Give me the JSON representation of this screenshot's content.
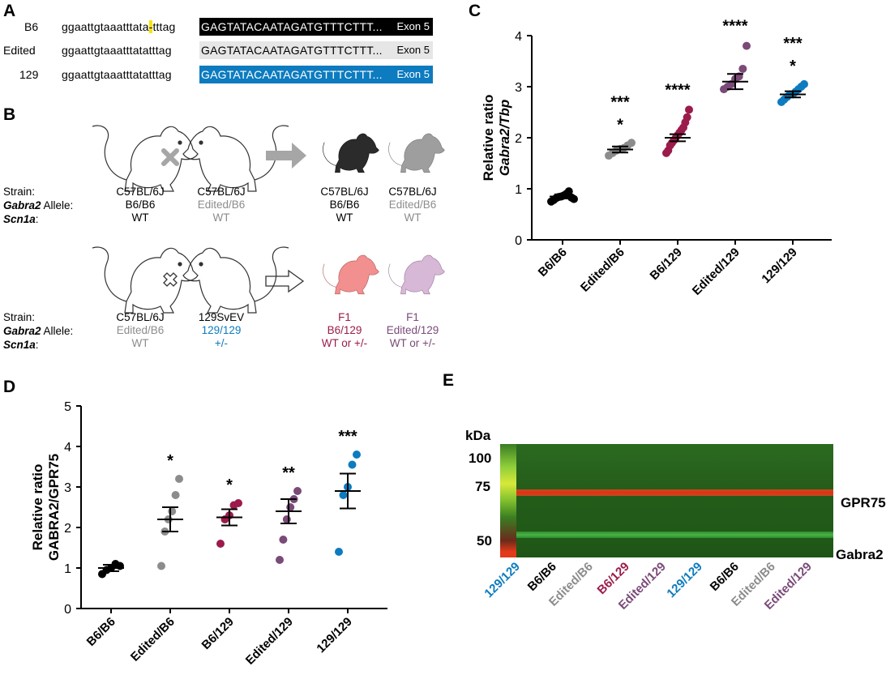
{
  "panels": {
    "a": "A",
    "b": "B",
    "c": "C",
    "d": "D",
    "e": "E"
  },
  "panel_a": {
    "rows": [
      {
        "name": "B6",
        "pre": "ggaattgtaaatttata",
        "highlight": "-",
        "post": "tttag",
        "exon_seq": "GAGTATACAATAGATGTTTCTTT...",
        "exon_label": "Exon 5"
      },
      {
        "name": "Edited",
        "pre": "ggaattgtaaatttatatttag",
        "highlight": "",
        "post": "",
        "exon_seq": "GAGTATACAATAGATGTTTCTTT...",
        "exon_label": "Exon 5"
      },
      {
        "name": "129",
        "pre": "ggaattgtaaatttatatttag",
        "highlight": "",
        "post": "",
        "exon_seq": "GAGTATACAATAGATGTTTCTTT...",
        "exon_label": "Exon 5"
      }
    ]
  },
  "panel_b": {
    "row_labels": {
      "strain": "Strain:",
      "allele_italic": "Gabra2",
      "allele_rest": " Allele:",
      "scn1a": "Scn1a",
      "scn1a_colon": ":"
    },
    "top": {
      "cols": [
        {
          "strain": "C57BL/6J",
          "allele": "B6/B6",
          "scn": "WT"
        },
        {
          "strain": "C57BL/6J",
          "allele": "Edited/B6",
          "scn": "WT"
        },
        {
          "strain": "C57BL/6J",
          "allele": "B6/B6",
          "scn": "WT"
        },
        {
          "strain": "C57BL/6J",
          "allele": "Edited/B6",
          "scn": "WT"
        }
      ]
    },
    "bottom": {
      "cols": [
        {
          "strain": "C57BL/6J",
          "allele": "Edited/B6",
          "scn": "WT"
        },
        {
          "strain": "129SvEV",
          "allele": "129/129",
          "scn": "+/-"
        },
        {
          "strain": "F1",
          "allele": "B6/129",
          "scn": "WT or +/-"
        },
        {
          "strain": "F1",
          "allele": "Edited/129",
          "scn": "WT or +/-"
        }
      ]
    }
  },
  "colors": {
    "b6b6": "#000000",
    "editedb6": "#8c8c8c",
    "b6129": "#9b1b4b",
    "edited129": "#7a4a78",
    "c129": "#0d7bbf"
  },
  "chart_data": [
    {
      "id": "C",
      "type": "scatter",
      "ylabel_line1": "Relative ratio",
      "ylabel_line2": "Gabra2/Tbp",
      "ylim": [
        0,
        4
      ],
      "yticks": [
        "0",
        "1",
        "2",
        "3",
        "4"
      ],
      "categories": [
        "B6/B6",
        "Edited/B6",
        "B6/129",
        "Edited/129",
        "129/129"
      ],
      "means": [
        0.85,
        1.77,
        2.0,
        3.1,
        2.85
      ],
      "sems": [
        0.04,
        0.06,
        0.07,
        0.15,
        0.06
      ],
      "points": [
        [
          0.75,
          0.78,
          0.82,
          0.84,
          0.85,
          0.87,
          0.9,
          0.95,
          0.83,
          0.8
        ],
        [
          1.65,
          1.7,
          1.75,
          1.78,
          1.8,
          1.85,
          1.9
        ],
        [
          1.7,
          1.75,
          1.85,
          1.9,
          1.95,
          2.0,
          2.05,
          2.1,
          2.15,
          2.2,
          2.3,
          2.4,
          2.55
        ],
        [
          2.95,
          3.0,
          3.05,
          3.15,
          3.2,
          3.35,
          3.8
        ],
        [
          2.7,
          2.75,
          2.8,
          2.85,
          2.85,
          2.9,
          2.95,
          3.0,
          3.05
        ]
      ],
      "sig_top": [
        "",
        "***",
        "****",
        "****",
        "***"
      ],
      "sig_bottom": [
        "",
        "*",
        "",
        "",
        "*"
      ]
    },
    {
      "id": "D",
      "type": "scatter",
      "ylabel_line1": "Relative ratio",
      "ylabel_line2": "GABRA2/GPR75",
      "ylim": [
        0,
        5
      ],
      "yticks": [
        "0",
        "1",
        "2",
        "3",
        "4",
        "5"
      ],
      "categories": [
        "B6/B6",
        "Edited/B6",
        "B6/129",
        "Edited/129",
        "129/129"
      ],
      "means": [
        1.0,
        2.2,
        2.25,
        2.4,
        2.9
      ],
      "sems": [
        0.08,
        0.3,
        0.2,
        0.3,
        0.43
      ],
      "points": [
        [
          0.85,
          0.95,
          1.0,
          1.1,
          1.05
        ],
        [
          1.05,
          1.9,
          2.2,
          2.4,
          2.8,
          3.2
        ],
        [
          1.6,
          2.2,
          2.3,
          2.55,
          2.6
        ],
        [
          1.2,
          1.7,
          2.2,
          2.5,
          2.7,
          2.9
        ],
        [
          1.4,
          2.8,
          3.0,
          3.55,
          3.8
        ]
      ],
      "sig_top": [
        "",
        "*",
        "*",
        "**",
        "***"
      ],
      "sig_bottom": [
        "",
        "",
        "",
        "",
        ""
      ]
    }
  ],
  "panel_e": {
    "kda_title": "kDa",
    "markers": [
      "100",
      "75",
      "50"
    ],
    "band_labels": [
      "GPR75",
      "Gabra2"
    ],
    "lanes": [
      "129/129",
      "B6/B6",
      "Edited/B6",
      "B6/129",
      "Edited/129",
      "129/129",
      "B6/B6",
      "Edited/B6",
      "Edited/129"
    ],
    "lane_colors": [
      "#0d7bbf",
      "#000000",
      "#8c8c8c",
      "#9b1b4b",
      "#7a4a78",
      "#0d7bbf",
      "#000000",
      "#8c8c8c",
      "#7a4a78"
    ]
  }
}
